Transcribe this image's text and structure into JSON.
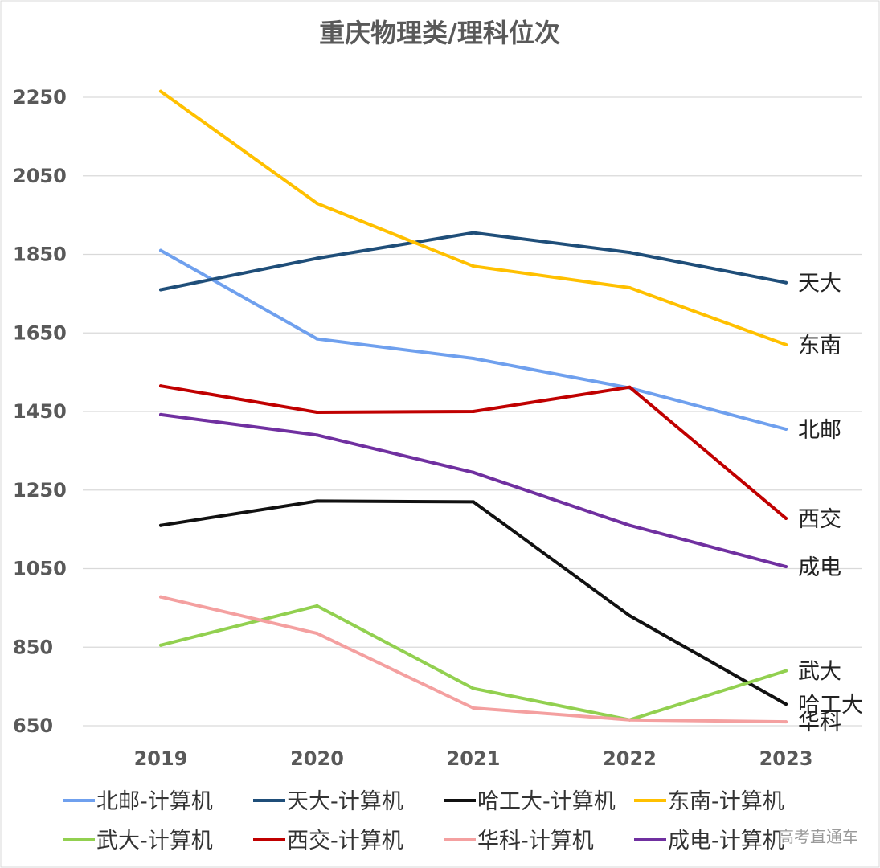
{
  "chart_data": {
    "type": "line",
    "title": "重庆物理类/理科位次",
    "categories": [
      "2019",
      "2020",
      "2021",
      "2022",
      "2023"
    ],
    "ylim": [
      650,
      2250
    ],
    "yticks": [
      2250,
      2050,
      1850,
      1650,
      1450,
      1250,
      1050,
      850,
      650
    ],
    "grid": true,
    "legend_position": "bottom",
    "series": [
      {
        "name": "北邮-计算机",
        "end_label": "北邮",
        "color": "#6FA0EE",
        "values": [
          1860,
          1635,
          1585,
          1510,
          1405
        ]
      },
      {
        "name": "天大-计算机",
        "end_label": "天大",
        "color": "#1F4E79",
        "values": [
          1760,
          1840,
          1905,
          1855,
          1778
        ]
      },
      {
        "name": "哈工大-计算机",
        "end_label": "哈工大",
        "color": "#111111",
        "values": [
          1160,
          1222,
          1220,
          930,
          705
        ]
      },
      {
        "name": "东南-计算机",
        "end_label": "东南",
        "color": "#FFC000",
        "values": [
          2265,
          1980,
          1820,
          1765,
          1620
        ]
      },
      {
        "name": "武大-计算机",
        "end_label": "武大",
        "color": "#92D050",
        "values": [
          855,
          955,
          745,
          665,
          790
        ]
      },
      {
        "name": "西交-计算机",
        "end_label": "西交",
        "color": "#C00000",
        "values": [
          1515,
          1448,
          1450,
          1512,
          1178
        ]
      },
      {
        "name": "华科-计算机",
        "end_label": "华科",
        "color": "#F4A0A0",
        "values": [
          978,
          885,
          695,
          665,
          660
        ]
      },
      {
        "name": "成电-计算机",
        "end_label": "成电",
        "color": "#7030A0",
        "values": [
          1442,
          1390,
          1295,
          1160,
          1055
        ]
      }
    ]
  },
  "watermark": "高考直通车"
}
